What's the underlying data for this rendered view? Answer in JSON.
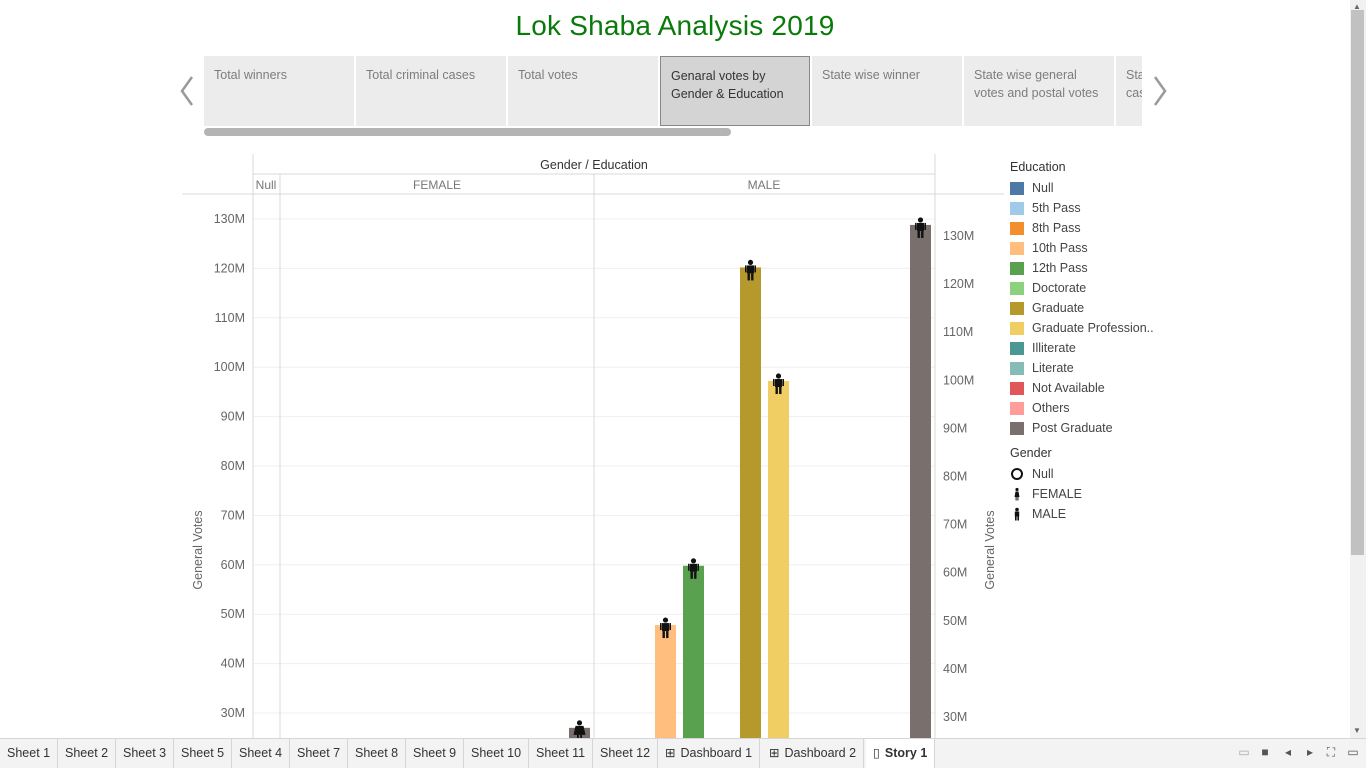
{
  "title": "Lok Shaba Analysis 2019",
  "story": {
    "tabs": [
      "Total winners",
      "Total criminal cases",
      "Total votes",
      "Genaral votes by Gender & Education",
      "State wise winner",
      "State wise general votes and postal votes",
      "State wise criminal cases"
    ],
    "active_index": 3,
    "prev_icon": "chevron-left-icon",
    "next_icon": "chevron-right-icon"
  },
  "chart_data": {
    "type": "bar",
    "header_title": "Gender / Education",
    "panels": [
      "Null",
      "FEMALE",
      "MALE"
    ],
    "ylabel_left": "General Votes",
    "ylabel_right": "General Votes",
    "left_ticks": [
      "30M",
      "40M",
      "50M",
      "60M",
      "70M",
      "80M",
      "90M",
      "100M",
      "110M",
      "120M",
      "130M"
    ],
    "right_ticks": [
      "30M",
      "40M",
      "50M",
      "60M",
      "70M",
      "80M",
      "90M",
      "100M",
      "110M",
      "120M",
      "130M"
    ],
    "yunit": "M",
    "series": [
      {
        "panel": "FEMALE",
        "education": "Post Graduate",
        "gender": "FEMALE",
        "value": 27
      },
      {
        "panel": "MALE",
        "education": "10th Pass",
        "gender": "MALE",
        "value": 47.8
      },
      {
        "panel": "MALE",
        "education": "12th Pass",
        "gender": "MALE",
        "value": 59.8
      },
      {
        "panel": "MALE",
        "education": "Graduate",
        "gender": "MALE",
        "value": 120.2
      },
      {
        "panel": "MALE",
        "education": "Graduate Professional",
        "gender": "MALE",
        "value": 97.2
      },
      {
        "panel": "MALE",
        "education": "Post Graduate",
        "gender": "MALE",
        "value": 128.8
      }
    ]
  },
  "legend": {
    "education_title": "Education",
    "education": [
      {
        "label": "Null",
        "color": "#4e79a7"
      },
      {
        "label": "5th Pass",
        "color": "#a0cbe8"
      },
      {
        "label": "8th Pass",
        "color": "#f28e2b"
      },
      {
        "label": "10th Pass",
        "color": "#ffbe7d"
      },
      {
        "label": "12th Pass",
        "color": "#59a14f"
      },
      {
        "label": "Doctorate",
        "color": "#8cd17d"
      },
      {
        "label": "Graduate",
        "color": "#b6992d"
      },
      {
        "label": "Graduate Profession..",
        "color": "#f1ce63"
      },
      {
        "label": "Illiterate",
        "color": "#499894"
      },
      {
        "label": "Literate",
        "color": "#86bcb6"
      },
      {
        "label": "Not Available",
        "color": "#e15759"
      },
      {
        "label": "Others",
        "color": "#ff9d9a"
      },
      {
        "label": "Post Graduate",
        "color": "#79706e"
      }
    ],
    "gender_title": "Gender",
    "gender": [
      {
        "label": "Null",
        "icon": "circle-icon"
      },
      {
        "label": "FEMALE",
        "icon": "female-icon"
      },
      {
        "label": "MALE",
        "icon": "male-icon"
      }
    ]
  },
  "sheets": [
    {
      "label": "Sheet 1",
      "icon": ""
    },
    {
      "label": "Sheet 2",
      "icon": ""
    },
    {
      "label": "Sheet 3",
      "icon": ""
    },
    {
      "label": "Sheet 5",
      "icon": ""
    },
    {
      "label": "Sheet 4",
      "icon": ""
    },
    {
      "label": "Sheet 7",
      "icon": ""
    },
    {
      "label": "Sheet 8",
      "icon": ""
    },
    {
      "label": "Sheet 9",
      "icon": ""
    },
    {
      "label": "Sheet 10",
      "icon": ""
    },
    {
      "label": "Sheet 11",
      "icon": ""
    },
    {
      "label": "Sheet 12",
      "icon": ""
    },
    {
      "label": "Dashboard 1",
      "icon": "dashboard-icon"
    },
    {
      "label": "Dashboard 2",
      "icon": "dashboard-icon"
    },
    {
      "label": "Story 1",
      "icon": "story-icon"
    }
  ],
  "active_sheet": "Story 1",
  "bottom_controls": [
    "filmstrip-view-icon",
    "tabs-view-icon",
    "first-sheet-icon",
    "prev-sheet-icon",
    "next-sheet-icon",
    "fullscreen-icon",
    "presentation-icon"
  ]
}
